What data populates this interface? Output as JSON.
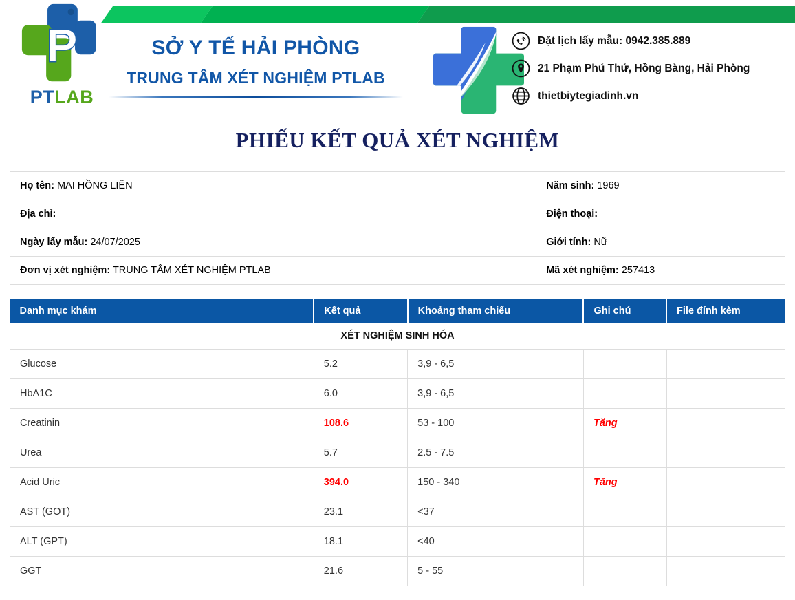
{
  "header": {
    "brand": {
      "letter": "P",
      "name_pt": "PT",
      "name_lab": "LAB"
    },
    "org_parent": "SỞ Y TẾ HẢI PHÒNG",
    "org_name": "TRUNG TÂM XÉT NGHIỆM PTLAB",
    "contacts": [
      {
        "icon": "phone-icon",
        "text": "Đặt lịch lấy mẫu: 0942.385.889"
      },
      {
        "icon": "location-icon",
        "text": "21 Phạm Phú Thứ, Hồng Bàng, Hải Phòng"
      },
      {
        "icon": "globe-icon",
        "text": "thietbiytegiadinh.vn"
      }
    ]
  },
  "title": "PHIẾU KẾT QUẢ XÉT NGHIỆM",
  "patient": {
    "rows": [
      {
        "left": {
          "label": "Họ tên:",
          "value": "MAI HỒNG LIÊN"
        },
        "right": {
          "label": "Năm sinh:",
          "value": "1969"
        }
      },
      {
        "left": {
          "label": "Địa chỉ:",
          "value": ""
        },
        "right": {
          "label": "Điện thoại:",
          "value": ""
        }
      },
      {
        "left": {
          "label": "Ngày lấy mẫu:",
          "value": "24/07/2025"
        },
        "right": {
          "label": "Giới tính:",
          "value": "Nữ"
        }
      },
      {
        "left": {
          "label": "Đơn vị xét nghiệm:",
          "value": "TRUNG TÂM XÉT NGHIỆM PTLAB"
        },
        "right": {
          "label": "Mã xét nghiệm:",
          "value": "257413"
        }
      }
    ]
  },
  "results": {
    "columns": [
      "Danh mục khám",
      "Kết quả",
      "Khoảng tham chiếu",
      "Ghi chú",
      "File đính kèm"
    ],
    "section_title": "XÉT NGHIỆM SINH HÓA",
    "rows": [
      {
        "name": "Glucose",
        "result": "5.2",
        "range": "3,9 - 6,5",
        "note": "",
        "file": "",
        "abnormal": false
      },
      {
        "name": "HbA1C",
        "result": "6.0",
        "range": "3,9 - 6,5",
        "note": "",
        "file": "",
        "abnormal": false
      },
      {
        "name": "Creatinin",
        "result": "108.6",
        "range": "53 - 100",
        "note": "Tăng",
        "file": "",
        "abnormal": true
      },
      {
        "name": "Urea",
        "result": "5.7",
        "range": "2.5 - 7.5",
        "note": "",
        "file": "",
        "abnormal": false
      },
      {
        "name": "Acid Uric",
        "result": "394.0",
        "range": "150 - 340",
        "note": "Tăng",
        "file": "",
        "abnormal": true
      },
      {
        "name": "AST (GOT)",
        "result": "23.1",
        "range": "<37",
        "note": "",
        "file": "",
        "abnormal": false
      },
      {
        "name": "ALT (GPT)",
        "result": "18.1",
        "range": "<40",
        "note": "",
        "file": "",
        "abnormal": false
      },
      {
        "name": "GGT",
        "result": "21.6",
        "range": "5 - 55",
        "note": "",
        "file": "",
        "abnormal": false
      }
    ]
  },
  "colors": {
    "table_header_bg": "#0b57a5",
    "org_blue": "#1156a7",
    "title_navy": "#15205f",
    "abnormal_red": "#ff0000",
    "brand_blue": "#1d5fa9",
    "brand_green": "#56a71c",
    "cross_blue": "#3b70d9",
    "cross_green": "#2ab573",
    "banner_green_1": "#0cc55f",
    "banner_green_2": "#00b151",
    "banner_green_3": "#0f9c4d"
  }
}
